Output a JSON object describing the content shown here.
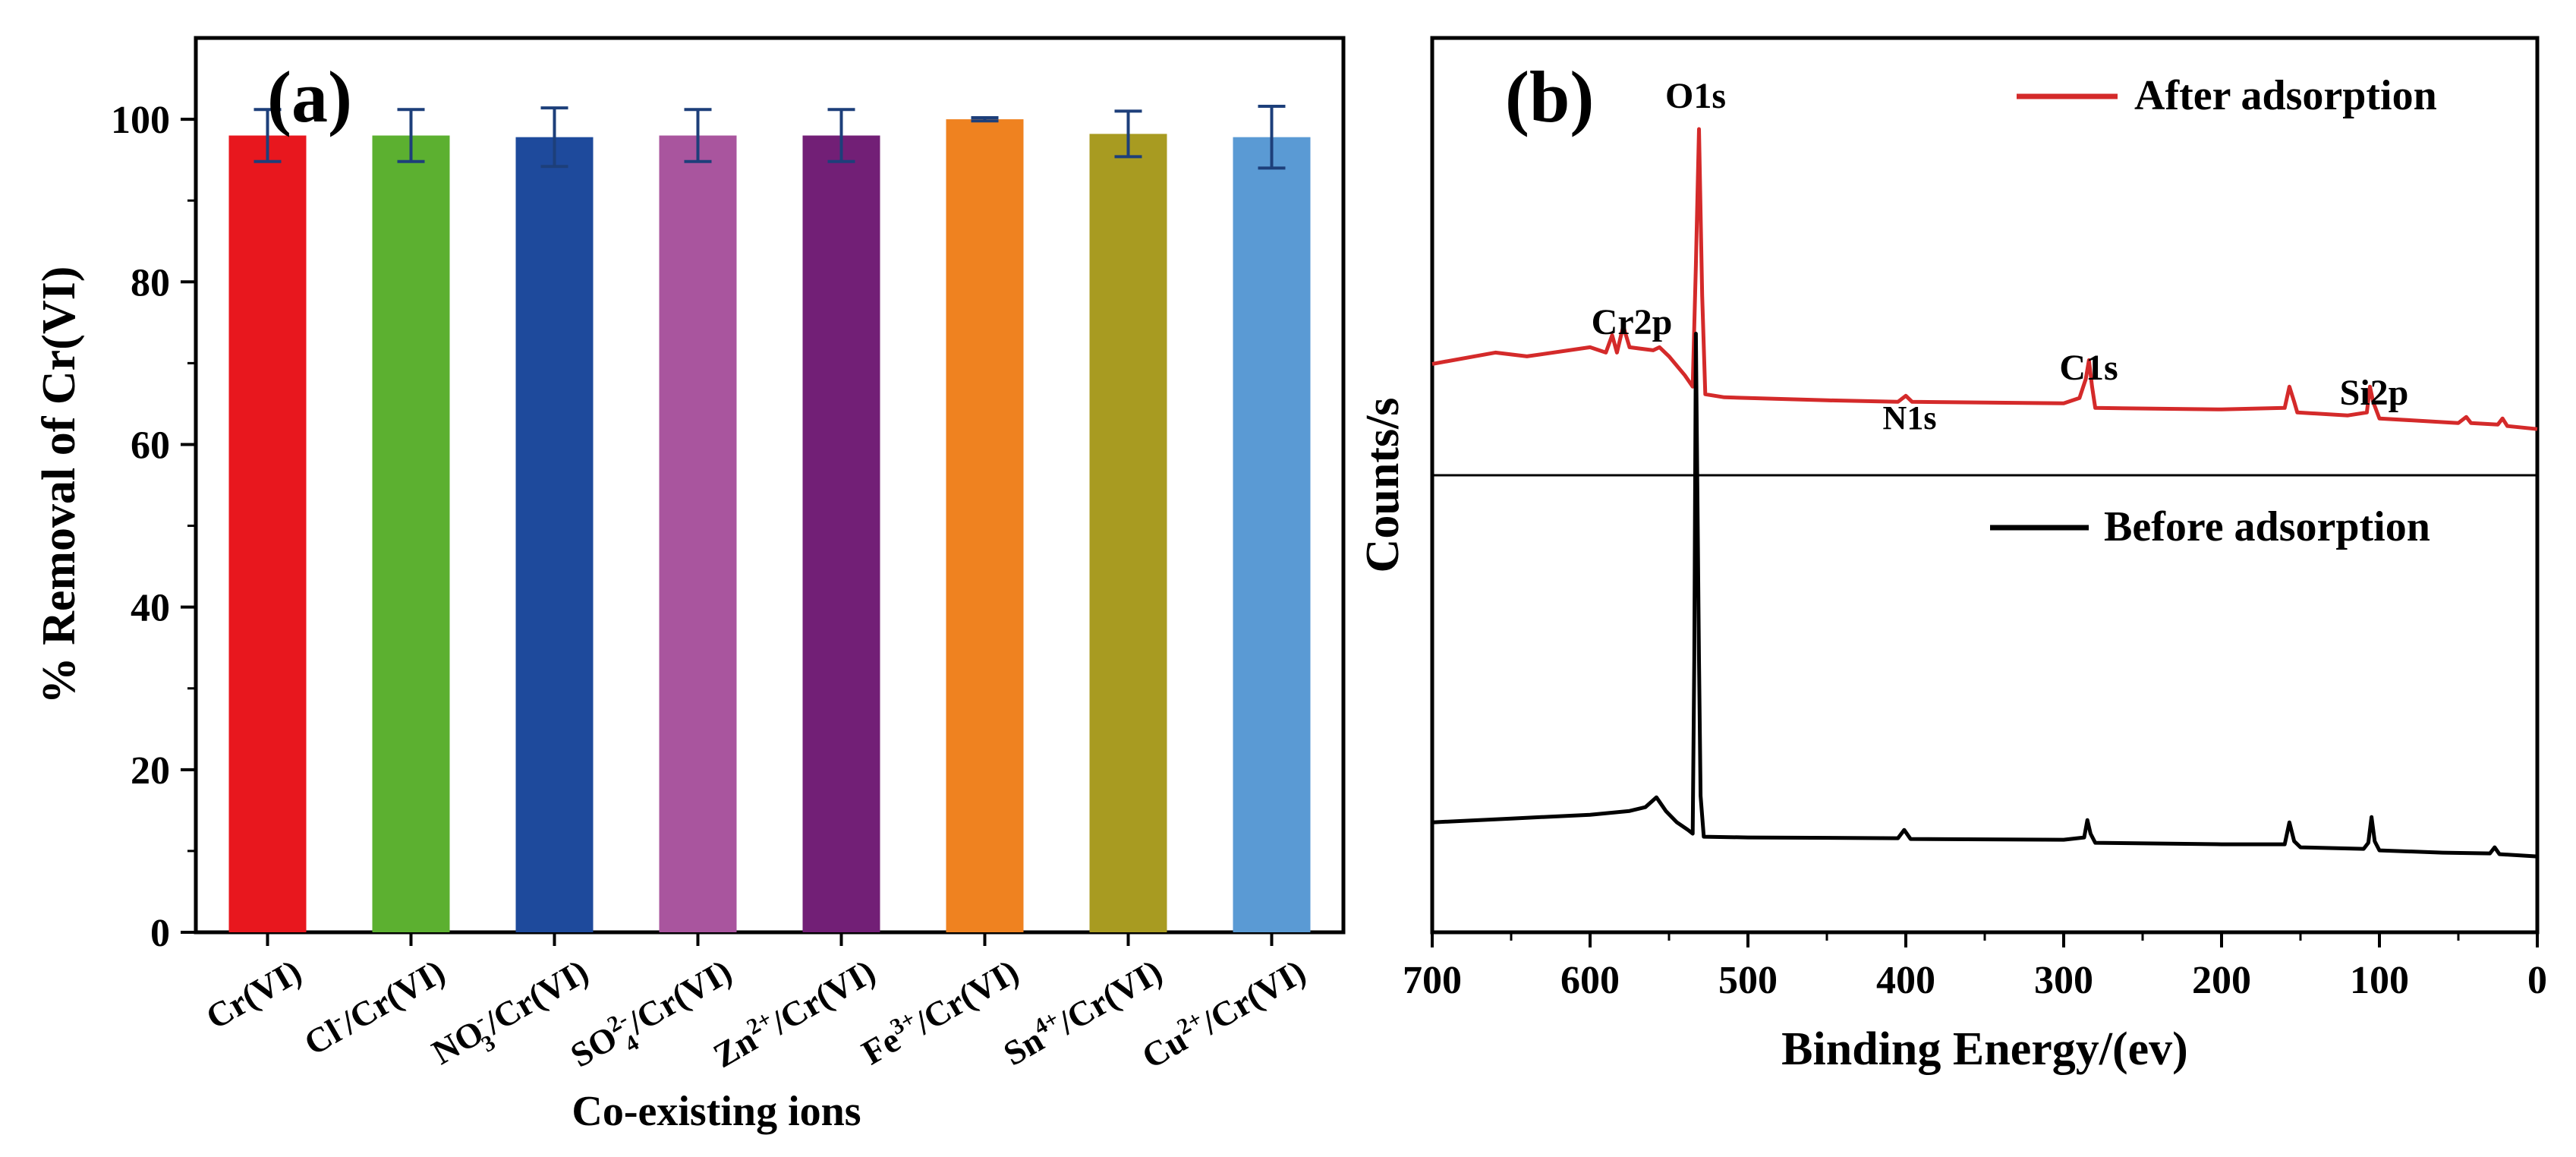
{
  "chart_data": [
    {
      "type": "bar",
      "panel_label": "(a)",
      "xlabel": "Co-existing ions",
      "ylabel": "% Removal of Cr(VI)",
      "ylim": [
        0,
        110
      ],
      "yticks": [
        "0",
        "20",
        "40",
        "60",
        "80",
        "100"
      ],
      "categories": [
        {
          "base": "Cr(VI)",
          "ion": "",
          "sup": "",
          "sub": ""
        },
        {
          "base": "/Cr(VI)",
          "ion": "Cl",
          "sup": "-",
          "sub": ""
        },
        {
          "base": "/Cr(VI)",
          "ion": "NO",
          "sup": "-",
          "sub": "3"
        },
        {
          "base": "/Cr(VI)",
          "ion": "SO",
          "sup": "2-",
          "sub": "4"
        },
        {
          "base": "/Cr(VI)",
          "ion": "Zn",
          "sup": "2+",
          "sub": ""
        },
        {
          "base": "/Cr(VI)",
          "ion": "Fe",
          "sup": "3+",
          "sub": ""
        },
        {
          "base": "/Cr(VI)",
          "ion": "Sn",
          "sup": "4+",
          "sub": ""
        },
        {
          "base": "/Cr(VI)",
          "ion": "Cu",
          "sup": "2+",
          "sub": ""
        }
      ],
      "values": [
        98.0,
        98.0,
        97.8,
        98.0,
        98.0,
        100.0,
        98.2,
        97.8
      ],
      "errors": [
        3.2,
        3.2,
        3.6,
        3.2,
        3.2,
        0.2,
        2.8,
        3.8
      ],
      "colors": [
        "#e8171e",
        "#5cb030",
        "#1e4a9c",
        "#a9559e",
        "#721f76",
        "#ef8220",
        "#a89b21",
        "#5a9ad4"
      ]
    },
    {
      "type": "line",
      "panel_label": "(b)",
      "xlabel": "Binding Energy/(ev)",
      "ylabel": "Counts/s",
      "xlim": [
        700,
        0
      ],
      "xticks": [
        "700",
        "600",
        "500",
        "400",
        "300",
        "200",
        "100",
        "0"
      ],
      "series": [
        {
          "name": "After adsorption",
          "color": "#d42a2a",
          "points": [
            [
              700,
              0.69
            ],
            [
              660,
              0.705
            ],
            [
              640,
              0.7
            ],
            [
              600,
              0.712
            ],
            [
              590,
              0.705
            ],
            [
              586,
              0.728
            ],
            [
              583,
              0.705
            ],
            [
              579,
              0.74
            ],
            [
              575,
              0.712
            ],
            [
              560,
              0.708
            ],
            [
              556,
              0.712
            ],
            [
              550,
              0.7
            ],
            [
              540,
              0.675
            ],
            [
              535,
              0.66
            ],
            [
              533,
              0.82
            ],
            [
              531,
              1.0
            ],
            [
              529,
              0.78
            ],
            [
              527,
              0.65
            ],
            [
              515,
              0.646
            ],
            [
              450,
              0.642
            ],
            [
              405,
              0.64
            ],
            [
              400,
              0.648
            ],
            [
              396,
              0.64
            ],
            [
              300,
              0.638
            ],
            [
              290,
              0.645
            ],
            [
              286,
              0.67
            ],
            [
              284,
              0.695
            ],
            [
              282,
              0.66
            ],
            [
              280,
              0.632
            ],
            [
              200,
              0.63
            ],
            [
              160,
              0.632
            ],
            [
              157,
              0.66
            ],
            [
              154,
              0.64
            ],
            [
              152,
              0.626
            ],
            [
              120,
              0.622
            ],
            [
              108,
              0.626
            ],
            [
              106,
              0.66
            ],
            [
              104,
              0.64
            ],
            [
              100,
              0.618
            ],
            [
              50,
              0.612
            ],
            [
              45,
              0.62
            ],
            [
              42,
              0.612
            ],
            [
              25,
              0.61
            ],
            [
              22,
              0.618
            ],
            [
              19,
              0.608
            ],
            [
              0,
              0.604
            ]
          ]
        },
        {
          "name": "Before adsorption",
          "color": "#000000",
          "points": [
            [
              700,
              0.085
            ],
            [
              650,
              0.09
            ],
            [
              600,
              0.095
            ],
            [
              575,
              0.1
            ],
            [
              565,
              0.105
            ],
            [
              558,
              0.118
            ],
            [
              552,
              0.1
            ],
            [
              545,
              0.085
            ],
            [
              538,
              0.075
            ],
            [
              535,
              0.07
            ],
            [
              534,
              0.3
            ],
            [
              533,
              0.73
            ],
            [
              532,
              0.52
            ],
            [
              531,
              0.3
            ],
            [
              530,
              0.12
            ],
            [
              528,
              0.066
            ],
            [
              500,
              0.065
            ],
            [
              405,
              0.064
            ],
            [
              401,
              0.075
            ],
            [
              397,
              0.063
            ],
            [
              300,
              0.062
            ],
            [
              287,
              0.065
            ],
            [
              285,
              0.088
            ],
            [
              283,
              0.07
            ],
            [
              280,
              0.058
            ],
            [
              200,
              0.056
            ],
            [
              160,
              0.056
            ],
            [
              157,
              0.085
            ],
            [
              154,
              0.06
            ],
            [
              150,
              0.052
            ],
            [
              110,
              0.05
            ],
            [
              107,
              0.058
            ],
            [
              105,
              0.092
            ],
            [
              103,
              0.06
            ],
            [
              100,
              0.048
            ],
            [
              60,
              0.045
            ],
            [
              30,
              0.044
            ],
            [
              27,
              0.052
            ],
            [
              24,
              0.043
            ],
            [
              0,
              0.04
            ]
          ]
        }
      ],
      "peak_labels": [
        "O1s",
        "Cr2p",
        "N1s",
        "C1s",
        "Si2p"
      ],
      "legend": [
        "After adsorption",
        "Before adsorption"
      ]
    }
  ]
}
